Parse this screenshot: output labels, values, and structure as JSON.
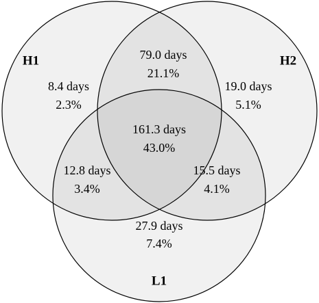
{
  "sets": [
    {
      "label": "H1"
    },
    {
      "label": "H2"
    },
    {
      "label": "L1"
    }
  ],
  "regions": [
    {
      "days": "8.4 days",
      "percent": "2.3%"
    },
    {
      "days": "79.0 days",
      "percent": "21.1%"
    },
    {
      "days": "19.0 days",
      "percent": "5.1%"
    },
    {
      "days": "161.3 days",
      "percent": "43.0%"
    },
    {
      "days": "12.8 days",
      "percent": "3.4%"
    },
    {
      "days": "15.5 days",
      "percent": "4.1%"
    },
    {
      "days": "27.9 days",
      "percent": "7.4%"
    }
  ]
}
